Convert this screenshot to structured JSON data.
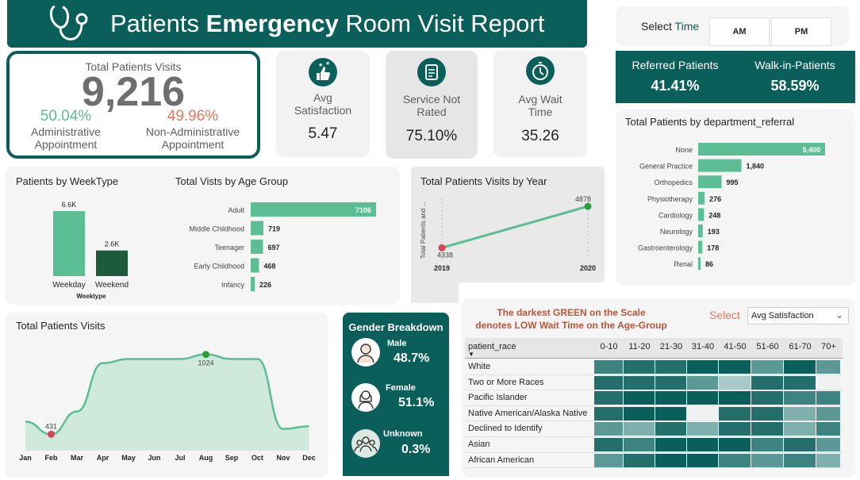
{
  "header": {
    "title_prefix": "Patients ",
    "title_bold": "Emergency",
    "title_suffix": " Room Visit Report"
  },
  "time_slicer": {
    "label_prefix": "Select ",
    "label_accent": "Time",
    "options": [
      "AM",
      "PM"
    ]
  },
  "total_visits": {
    "label": "Total Patients Visits",
    "value": "9,216",
    "admin_pct": "50.04%",
    "admin_label_line1": "Administrative",
    "admin_label_line2": "Appointment",
    "nonadmin_pct": "49.96%",
    "nonadmin_label_line1": "Non-Administrative",
    "nonadmin_label_line2": "Appointment"
  },
  "kpis": {
    "satisfaction": {
      "label_line1": "Avg",
      "label_line2": "Satisfaction",
      "value": "5.47"
    },
    "not_rated": {
      "label_line1": "Service Not",
      "label_line2": "Rated",
      "value": "75.10%"
    },
    "wait": {
      "label_line1": "Avg Wait",
      "label_line2": "Time",
      "value": "35.26"
    }
  },
  "referral_split": {
    "referred_label": "Referred Patients",
    "referred_value": "41.41%",
    "walkin_label": "Walk-in-Patients",
    "walkin_value": "58.59%"
  },
  "gender": {
    "title": "Gender Breakdown",
    "items": [
      {
        "label": "Male",
        "value": "48.7%"
      },
      {
        "label": "Female",
        "value": "51.1%"
      },
      {
        "label": "Unknown",
        "value": "0.3%"
      }
    ]
  },
  "heatmap": {
    "note_line1": "The darkest GREEN on the Scale",
    "note_line2": "denotes LOW Wait Time on the Age-Group",
    "select_label": "Select",
    "select_value": "Avg Satisfaction",
    "row_header": "patient_race",
    "columns": [
      "0-10",
      "11-20",
      "21-30",
      "31-40",
      "41-50",
      "51-60",
      "61-70",
      "70+"
    ],
    "rows": [
      "White",
      "Two or More Races",
      "Pacific Islander",
      "Native American/Alaska Native",
      "Declined to Identify",
      "Asian",
      "African American"
    ],
    "levels": [
      [
        2,
        1,
        1,
        0,
        0,
        3,
        0,
        3
      ],
      [
        1,
        1,
        1,
        3,
        5,
        1,
        1,
        6
      ],
      [
        1,
        0,
        0,
        0,
        0,
        1,
        2,
        2
      ],
      [
        1,
        0,
        0,
        6,
        1,
        1,
        4,
        3
      ],
      [
        3,
        4,
        1,
        4,
        1,
        1,
        4,
        2
      ],
      [
        1,
        2,
        0,
        0,
        0,
        2,
        1,
        3
      ],
      [
        3,
        1,
        0,
        0,
        2,
        3,
        2,
        4
      ]
    ],
    "palette": [
      "#0b5f5a",
      "#246f6b",
      "#3d8380",
      "#5c9996",
      "#7fb0ae",
      "#a9c9c8",
      "#f0f2f2"
    ]
  },
  "chart_data": [
    {
      "type": "bar",
      "title": "Patients by WeekType",
      "xlabel": "Weektype",
      "categories": [
        "Weekday",
        "Weekend"
      ],
      "values": [
        6600,
        2600
      ],
      "data_labels": [
        "6.6K",
        "2.6K"
      ],
      "colors": [
        "#5bbe94",
        "#1e5a3c"
      ]
    },
    {
      "type": "bar",
      "orientation": "horizontal",
      "title": "Total Vists by Age Group",
      "categories": [
        "Adult",
        "Middle Childhood",
        "Teenager",
        "Early Childhood",
        "Infancy"
      ],
      "values": [
        7106,
        719,
        697,
        468,
        226
      ],
      "color": "#5bbe94"
    },
    {
      "type": "line",
      "title": "Total Patients Visits by Year",
      "ylabel": "Total Patients and ...",
      "x": [
        "2019",
        "2020"
      ],
      "values": [
        4338,
        4878
      ],
      "color": "#5bbe94"
    },
    {
      "type": "bar",
      "orientation": "horizontal",
      "title": "Total Patients by department_referral",
      "categories": [
        "None",
        "General Practice",
        "Orthopedics",
        "Physiotherapy",
        "Cardiology",
        "Neurology",
        "Gastroenterology",
        "Renal"
      ],
      "values": [
        5400,
        1840,
        995,
        276,
        248,
        193,
        178,
        86
      ],
      "data_labels": [
        "5,400",
        "1,840",
        "995",
        "276",
        "248",
        "193",
        "178",
        "86"
      ],
      "color": "#5bbe94"
    },
    {
      "type": "area",
      "title": "Total Patients Visits",
      "categories": [
        "Jan",
        "Feb",
        "Mar",
        "Apr",
        "May",
        "Jun",
        "Jul",
        "Aug",
        "Sep",
        "Oct",
        "Nov",
        "Dec"
      ],
      "values": [
        525,
        431,
        600,
        960,
        990,
        990,
        990,
        1024,
        990,
        990,
        470,
        490
      ],
      "annotations": [
        {
          "x": "Feb",
          "label": "431"
        },
        {
          "x": "Aug",
          "label": "1024"
        }
      ],
      "color": "#5bbe94"
    }
  ]
}
